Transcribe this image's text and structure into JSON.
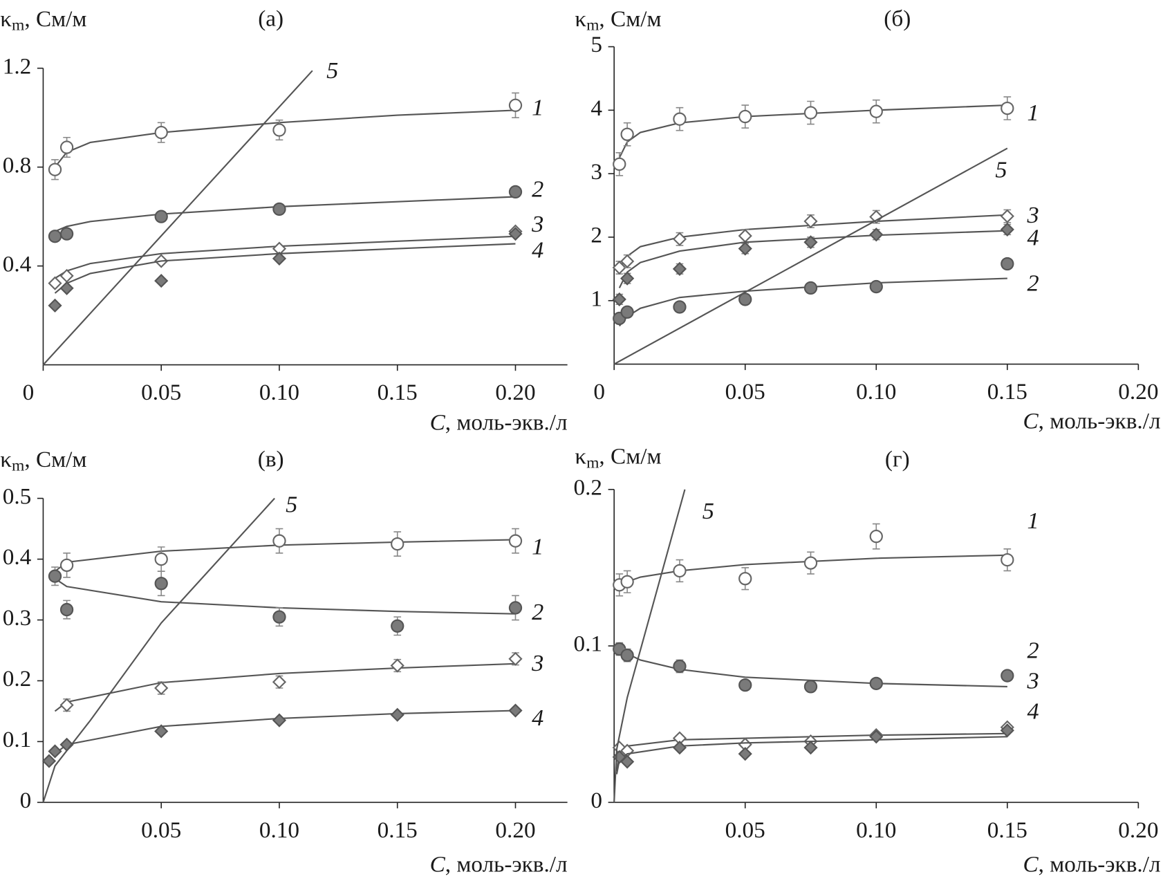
{
  "chart_data": [
    {
      "type": "scatter",
      "panel": "(а)",
      "y_label": {
        "symbol": "κ",
        "subscript": "m",
        "unit": ", См/м"
      },
      "x_label": {
        "symbol": "C",
        "unit": ", моль-экв./л"
      },
      "xlim": [
        0,
        0.222
      ],
      "ylim": [
        0,
        1.2
      ],
      "xticks": [
        0,
        0.05,
        {
          "value": 0.1,
          "label": "0.10"
        },
        0.15,
        {
          "value": 0.2,
          "label": "0.20"
        }
      ],
      "yticks": [
        0.4,
        0.8,
        1.2
      ],
      "series": [
        {
          "name": "1",
          "marker": "circle",
          "filled": false,
          "x": [
            0.005,
            0.01,
            0.05,
            0.1,
            0.2
          ],
          "values": [
            0.79,
            0.88,
            0.94,
            0.95,
            1.05
          ],
          "errors": [
            0.04,
            0.04,
            0.04,
            0.04,
            0.05
          ],
          "fit": {
            "x": [
              0.005,
              0.01,
              0.02,
              0.05,
              0.1,
              0.15,
              0.2
            ],
            "values": [
              0.8,
              0.86,
              0.9,
              0.94,
              0.98,
              1.01,
              1.03
            ]
          }
        },
        {
          "name": "2",
          "marker": "circle",
          "filled": true,
          "x": [
            0.005,
            0.01,
            0.05,
            0.1,
            0.2
          ],
          "values": [
            0.52,
            0.53,
            0.6,
            0.63,
            0.7
          ],
          "fit": {
            "x": [
              0.005,
              0.01,
              0.02,
              0.05,
              0.1,
              0.15,
              0.2
            ],
            "values": [
              0.54,
              0.56,
              0.58,
              0.61,
              0.64,
              0.66,
              0.68
            ]
          }
        },
        {
          "name": "3",
          "marker": "diamond",
          "filled": false,
          "x": [
            0.005,
            0.01,
            0.05,
            0.1,
            0.2
          ],
          "values": [
            0.33,
            0.36,
            0.42,
            0.47,
            0.54
          ],
          "fit": {
            "x": [
              0.005,
              0.01,
              0.02,
              0.05,
              0.1,
              0.15,
              0.2
            ],
            "values": [
              0.35,
              0.38,
              0.41,
              0.45,
              0.48,
              0.5,
              0.52
            ]
          }
        },
        {
          "name": "4",
          "marker": "diamond",
          "filled": true,
          "x": [
            0.005,
            0.01,
            0.05,
            0.1,
            0.2
          ],
          "values": [
            0.24,
            0.31,
            0.34,
            0.43,
            0.53
          ],
          "fit": {
            "x": [
              0.005,
              0.01,
              0.02,
              0.05,
              0.1,
              0.15,
              0.2
            ],
            "values": [
              0.29,
              0.33,
              0.37,
              0.42,
              0.45,
              0.47,
              0.49
            ]
          }
        },
        {
          "name": "5",
          "marker": "line",
          "x": [
            0,
            0.114
          ],
          "values": [
            0,
            1.19
          ]
        }
      ]
    },
    {
      "type": "scatter",
      "panel": "(б)",
      "y_label": {
        "symbol": "κ",
        "subscript": "m",
        "unit": ", См/м"
      },
      "x_label": {
        "symbol": "C",
        "unit": ", моль-экв./л"
      },
      "xlim": [
        0,
        0.2
      ],
      "ylim": [
        0,
        5
      ],
      "xticks": [
        0,
        0.05,
        {
          "value": 0.1,
          "label": "0.10"
        },
        0.15,
        {
          "value": 0.2,
          "label": "0.20"
        }
      ],
      "yticks": [
        1,
        2,
        3,
        4,
        5
      ],
      "series": [
        {
          "name": "1",
          "marker": "circle",
          "filled": false,
          "x": [
            0.002,
            0.005,
            0.025,
            0.05,
            0.075,
            0.1,
            0.15
          ],
          "values": [
            3.15,
            3.62,
            3.86,
            3.9,
            3.96,
            3.98,
            4.03
          ],
          "errors": [
            0.18,
            0.18,
            0.18,
            0.18,
            0.18,
            0.18,
            0.18
          ],
          "fit": {
            "x": [
              0.002,
              0.005,
              0.01,
              0.025,
              0.05,
              0.1,
              0.15
            ],
            "values": [
              3.25,
              3.5,
              3.65,
              3.8,
              3.9,
              4.0,
              4.08
            ]
          }
        },
        {
          "name": "2",
          "marker": "circle",
          "filled": true,
          "x": [
            0.002,
            0.005,
            0.025,
            0.05,
            0.075,
            0.1,
            0.15
          ],
          "values": [
            0.72,
            0.82,
            0.9,
            1.02,
            1.2,
            1.22,
            1.58
          ],
          "fit": {
            "x": [
              0.002,
              0.005,
              0.01,
              0.025,
              0.05,
              0.1,
              0.15
            ],
            "values": [
              0.6,
              0.75,
              0.88,
              1.05,
              1.15,
              1.28,
              1.35
            ]
          }
        },
        {
          "name": "3",
          "marker": "diamond",
          "filled": false,
          "x": [
            0.002,
            0.005,
            0.025,
            0.05,
            0.075,
            0.1,
            0.15
          ],
          "values": [
            1.52,
            1.62,
            1.97,
            2.02,
            2.25,
            2.32,
            2.33
          ],
          "errors": [
            0.1,
            0.1,
            0.1,
            0.1,
            0.1,
            0.1,
            0.1
          ],
          "fit": {
            "x": [
              0.002,
              0.005,
              0.01,
              0.025,
              0.05,
              0.1,
              0.15
            ],
            "values": [
              1.5,
              1.7,
              1.85,
              2.0,
              2.12,
              2.25,
              2.35
            ]
          }
        },
        {
          "name": "4",
          "marker": "diamond",
          "filled": true,
          "x": [
            0.002,
            0.005,
            0.025,
            0.05,
            0.075,
            0.1,
            0.15
          ],
          "values": [
            1.02,
            1.35,
            1.5,
            1.82,
            1.92,
            2.04,
            2.12
          ],
          "errors": [
            0.08,
            0.08,
            0.08,
            0.08,
            0.08,
            0.08,
            0.08
          ],
          "fit": {
            "x": [
              0.002,
              0.005,
              0.01,
              0.025,
              0.05,
              0.1,
              0.15
            ],
            "values": [
              1.2,
              1.45,
              1.6,
              1.78,
              1.92,
              2.03,
              2.1
            ]
          }
        },
        {
          "name": "5",
          "marker": "line",
          "x": [
            0,
            0.15
          ],
          "values": [
            0,
            3.4
          ]
        }
      ]
    },
    {
      "type": "scatter",
      "panel": "(в)",
      "y_label": {
        "symbol": "κ",
        "subscript": "m",
        "unit": ", См/м"
      },
      "x_label": {
        "symbol": "C",
        "unit": ", моль-экв./л"
      },
      "xlim": [
        0,
        0.222
      ],
      "ylim": [
        0,
        0.5
      ],
      "xticks": [
        0.05,
        {
          "value": 0.1,
          "label": "0.10"
        },
        0.15,
        {
          "value": 0.2,
          "label": "0.20"
        }
      ],
      "yticks": [
        0,
        0.1,
        0.2,
        0.3,
        0.4,
        0.5
      ],
      "series": [
        {
          "name": "1",
          "marker": "circle",
          "filled": false,
          "x": [
            0.01,
            0.05,
            0.1,
            0.15,
            0.2
          ],
          "values": [
            0.39,
            0.4,
            0.43,
            0.425,
            0.43
          ],
          "errors": [
            0.02,
            0.02,
            0.02,
            0.02,
            0.02
          ],
          "fit": {
            "x": [
              0.005,
              0.01,
              0.05,
              0.1,
              0.15,
              0.2
            ],
            "values": [
              0.38,
              0.395,
              0.413,
              0.423,
              0.428,
              0.432
            ]
          }
        },
        {
          "name": "2",
          "marker": "circle",
          "filled": true,
          "x": [
            0.005,
            0.01,
            0.05,
            0.1,
            0.15,
            0.2
          ],
          "values": [
            0.372,
            0.317,
            0.36,
            0.305,
            0.29,
            0.32
          ],
          "errors": [
            0.015,
            0.015,
            0.02,
            0.015,
            0.015,
            0.02
          ],
          "fit": {
            "x": [
              0.005,
              0.01,
              0.05,
              0.1,
              0.15,
              0.2
            ],
            "values": [
              0.368,
              0.355,
              0.33,
              0.32,
              0.314,
              0.31
            ]
          }
        },
        {
          "name": "3",
          "marker": "diamond",
          "filled": false,
          "x": [
            0.01,
            0.05,
            0.1,
            0.15,
            0.2
          ],
          "values": [
            0.16,
            0.188,
            0.198,
            0.225,
            0.236
          ],
          "errors": [
            0.01,
            0.01,
            0.01,
            0.01,
            0.01
          ],
          "fit": {
            "x": [
              0.005,
              0.01,
              0.05,
              0.1,
              0.15,
              0.2
            ],
            "values": [
              0.15,
              0.165,
              0.197,
              0.212,
              0.221,
              0.228
            ]
          }
        },
        {
          "name": "4",
          "marker": "diamond",
          "filled": true,
          "x": [
            0.0025,
            0.005,
            0.01,
            0.05,
            0.1,
            0.15,
            0.2
          ],
          "values": [
            0.068,
            0.084,
            0.095,
            0.117,
            0.135,
            0.144,
            0.151
          ],
          "fit": {
            "x": [
              0.005,
              0.01,
              0.05,
              0.1,
              0.15,
              0.2
            ],
            "values": [
              0.08,
              0.095,
              0.125,
              0.138,
              0.146,
              0.151
            ]
          }
        },
        {
          "name": "5",
          "marker": "line",
          "x": [
            0,
            0.005,
            0.02,
            0.05,
            0.098
          ],
          "values": [
            0,
            0.06,
            0.135,
            0.295,
            0.5
          ]
        }
      ]
    },
    {
      "type": "scatter",
      "panel": "(г)",
      "y_label": {
        "symbol": "κ",
        "subscript": "m",
        "unit": ", См/м"
      },
      "x_label": {
        "symbol": "C",
        "unit": ", моль-экв./л"
      },
      "xlim": [
        0,
        0.2
      ],
      "ylim": [
        0,
        0.2
      ],
      "xticks": [
        0.05,
        {
          "value": 0.1,
          "label": "0.10"
        },
        0.15,
        {
          "value": 0.2,
          "label": "0.20"
        }
      ],
      "yticks": [
        0,
        0.1,
        0.2
      ],
      "series": [
        {
          "name": "1",
          "marker": "circle",
          "filled": false,
          "x": [
            0.002,
            0.005,
            0.025,
            0.05,
            0.075,
            0.1,
            0.15
          ],
          "values": [
            0.139,
            0.141,
            0.148,
            0.143,
            0.153,
            0.17,
            0.155
          ],
          "errors": [
            0.007,
            0.007,
            0.007,
            0.007,
            0.007,
            0.008,
            0.007
          ],
          "fit": {
            "x": [
              0.002,
              0.005,
              0.01,
              0.025,
              0.05,
              0.1,
              0.15
            ],
            "values": [
              0.138,
              0.141,
              0.144,
              0.148,
              0.152,
              0.156,
              0.158
            ]
          }
        },
        {
          "name": "2",
          "marker": "circle",
          "filled": true,
          "x": [
            0.002,
            0.005,
            0.025,
            0.05,
            0.075,
            0.1,
            0.15
          ],
          "values": [
            0.098,
            0.094,
            0.087,
            0.075,
            0.074,
            0.076,
            0.081
          ],
          "errors": [
            0.004,
            0.004,
            0.004,
            0.003,
            0.003,
            0.003,
            0.003
          ],
          "fit": {
            "x": [
              0.002,
              0.005,
              0.01,
              0.025,
              0.05,
              0.1,
              0.15
            ],
            "values": [
              0.098,
              0.095,
              0.091,
              0.085,
              0.08,
              0.076,
              0.074
            ]
          }
        },
        {
          "name": "3",
          "marker": "diamond",
          "filled": false,
          "x": [
            0.002,
            0.005,
            0.025,
            0.05,
            0.075,
            0.1,
            0.15
          ],
          "values": [
            0.035,
            0.033,
            0.041,
            0.037,
            0.039,
            0.043,
            0.048
          ],
          "fit": {
            "x": [
              0.001,
              0.002,
              0.005,
              0.025,
              0.05,
              0.1,
              0.15
            ],
            "values": [
              0.02,
              0.033,
              0.036,
              0.04,
              0.041,
              0.043,
              0.044
            ]
          }
        },
        {
          "name": "4",
          "marker": "diamond",
          "filled": true,
          "x": [
            0.002,
            0.005,
            0.025,
            0.05,
            0.075,
            0.1,
            0.15
          ],
          "values": [
            0.029,
            0.026,
            0.035,
            0.031,
            0.035,
            0.042,
            0.046
          ],
          "fit": {
            "x": [
              0.001,
              0.002,
              0.005,
              0.025,
              0.05,
              0.1,
              0.15
            ],
            "values": [
              0.018,
              0.027,
              0.031,
              0.036,
              0.038,
              0.04,
              0.042
            ]
          }
        },
        {
          "name": "5",
          "marker": "line",
          "x": [
            0,
            0.001,
            0.005,
            0.027
          ],
          "values": [
            0,
            0.034,
            0.067,
            0.2
          ]
        }
      ]
    }
  ]
}
